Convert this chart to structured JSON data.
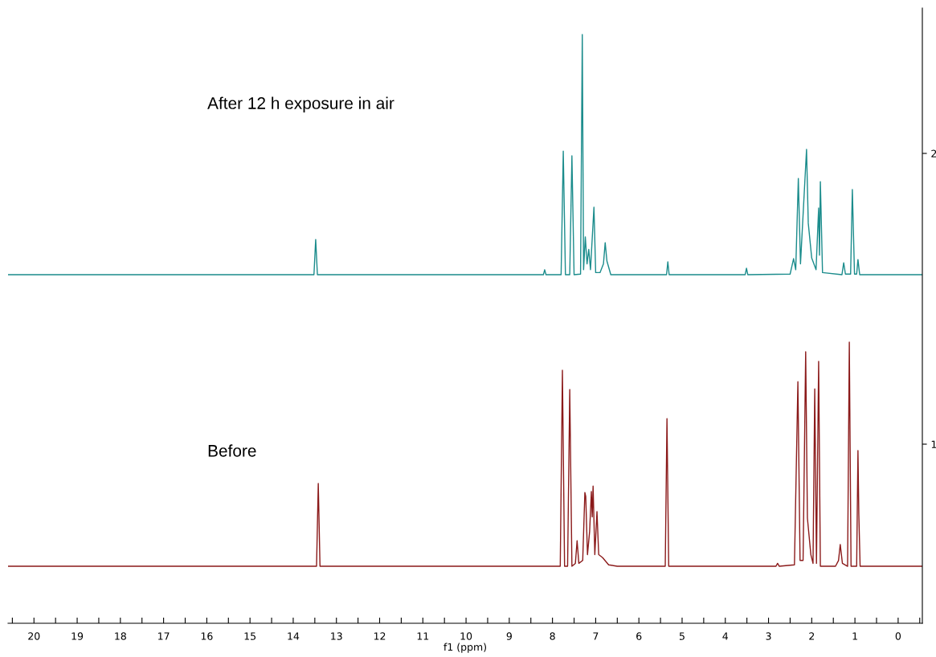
{
  "chart_data": {
    "type": "line",
    "xlabel": "f1 (ppm)",
    "xlim": [
      20.6,
      -0.56
    ],
    "ylim": [
      0.384,
      2.5
    ],
    "xticks": [
      20,
      {
        "value": 19.5,
        "label": null
      },
      19,
      {
        "value": 18.5,
        "label": null
      },
      18,
      {
        "value": 17.5,
        "label": null
      },
      17,
      {
        "value": 16.5,
        "label": null
      },
      16,
      {
        "value": 15.5,
        "label": null
      },
      15,
      {
        "value": 14.5,
        "label": null
      },
      14,
      {
        "value": 13.5,
        "label": null
      },
      13,
      {
        "value": 12.5,
        "label": null
      },
      12,
      {
        "value": 11.5,
        "label": null
      },
      11,
      {
        "value": 10.5,
        "label": null
      },
      10,
      {
        "value": 9.5,
        "label": null
      },
      9,
      {
        "value": 8.5,
        "label": null
      },
      8,
      {
        "value": 7.5,
        "label": null
      },
      7,
      {
        "value": 6.5,
        "label": null
      },
      6,
      {
        "value": 5.5,
        "label": null
      },
      5,
      {
        "value": 4.5,
        "label": null
      },
      4,
      {
        "value": 3.5,
        "label": null
      },
      3,
      {
        "value": 2.5,
        "label": null
      },
      2,
      {
        "value": 1.5,
        "label": null
      },
      1,
      {
        "value": 0.5,
        "label": null
      },
      0,
      {
        "value": -0.5,
        "label": null
      },
      {
        "value": 20.5,
        "label": null
      }
    ],
    "yticks": [
      1,
      2
    ],
    "grid": false,
    "legend": false,
    "annotations": [
      "After 12 h exposure in air",
      "Before"
    ],
    "series": [
      {
        "color": "#1b8c8c",
        "x": [
          20.6,
          13.52,
          13.48,
          13.44,
          8.21,
          8.18,
          8.15,
          7.8,
          7.75,
          7.7,
          7.6,
          7.55,
          7.5,
          7.35,
          7.31,
          7.28,
          7.24,
          7.2,
          7.16,
          7.12,
          7.04,
          7.0,
          6.9,
          6.82,
          6.78,
          6.74,
          6.65,
          5.36,
          5.33,
          5.3,
          3.54,
          3.51,
          3.48,
          2.5,
          2.42,
          2.37,
          2.31,
          2.26,
          2.12,
          2.08,
          2.0,
          1.9,
          1.84,
          1.82,
          1.8,
          1.75,
          1.3,
          1.26,
          1.22,
          1.1,
          1.06,
          1.01,
          0.96,
          0.93,
          0.89,
          -0.56
        ],
        "values": [
          1.583,
          1.583,
          1.704,
          1.583,
          1.583,
          1.6,
          1.583,
          1.583,
          2.008,
          1.583,
          1.583,
          1.992,
          1.583,
          1.585,
          2.409,
          1.6,
          1.713,
          1.62,
          1.67,
          1.6,
          1.815,
          1.59,
          1.59,
          1.62,
          1.693,
          1.63,
          1.583,
          1.583,
          1.627,
          1.583,
          1.583,
          1.605,
          1.583,
          1.585,
          1.638,
          1.6,
          1.914,
          1.62,
          2.014,
          1.76,
          1.64,
          1.6,
          1.812,
          1.65,
          1.903,
          1.59,
          1.583,
          1.624,
          1.585,
          1.585,
          1.876,
          1.585,
          1.585,
          1.635,
          1.583,
          1.583
        ]
      },
      {
        "color": "#8b1a1a",
        "x": [
          20.6,
          13.46,
          13.42,
          13.38,
          7.82,
          7.77,
          7.72,
          7.65,
          7.6,
          7.55,
          7.47,
          7.43,
          7.39,
          7.3,
          7.25,
          7.23,
          7.19,
          7.14,
          7.1,
          7.08,
          7.06,
          7.02,
          6.97,
          6.93,
          6.84,
          6.7,
          6.5,
          5.39,
          5.35,
          5.31,
          2.83,
          2.79,
          2.75,
          2.4,
          2.32,
          2.27,
          2.2,
          2.14,
          2.1,
          2.02,
          1.97,
          1.93,
          1.89,
          1.84,
          1.8,
          1.45,
          1.38,
          1.34,
          1.29,
          1.17,
          1.13,
          1.09,
          0.96,
          0.93,
          0.91,
          0.88,
          -0.56
        ],
        "values": [
          0.58,
          0.58,
          0.865,
          0.58,
          0.58,
          1.254,
          0.58,
          0.58,
          1.188,
          0.58,
          0.59,
          0.668,
          0.59,
          0.6,
          0.834,
          0.82,
          0.62,
          0.7,
          0.837,
          0.75,
          0.856,
          0.62,
          0.768,
          0.62,
          0.61,
          0.585,
          0.58,
          0.58,
          1.088,
          0.58,
          0.58,
          0.59,
          0.58,
          0.585,
          1.215,
          0.6,
          0.6,
          1.318,
          0.746,
          0.62,
          0.59,
          1.19,
          0.59,
          1.285,
          0.58,
          0.58,
          0.6,
          0.655,
          0.59,
          0.58,
          1.351,
          0.58,
          0.58,
          0.978,
          0.76,
          0.58,
          0.58
        ]
      }
    ]
  }
}
